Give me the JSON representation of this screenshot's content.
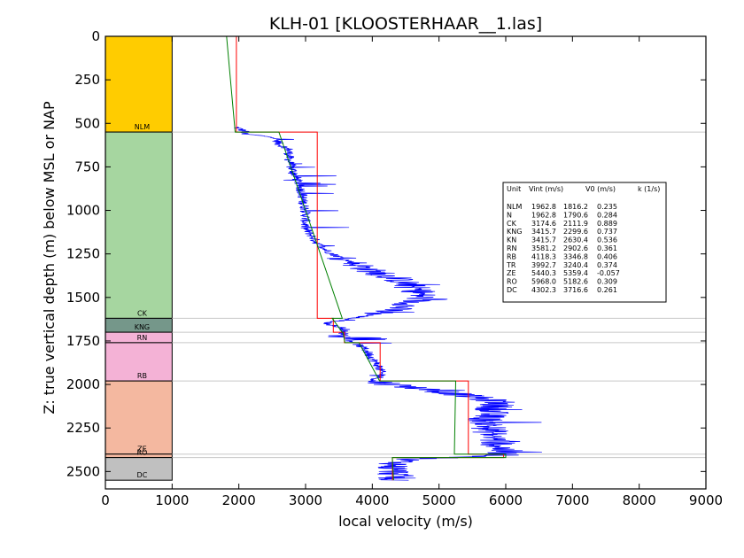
{
  "chart_data": {
    "type": "line",
    "title": "KLH-01 [KLOOSTERHAAR__1.las]",
    "xlabel": "local velocity (m/s)",
    "ylabel": "Z: true vertical depth (m) below MSL or NAP",
    "xlim": [
      0,
      9000
    ],
    "ylim": [
      2600,
      0
    ],
    "x_ticks": [
      "0",
      "1000",
      "2000",
      "3000",
      "4000",
      "5000",
      "6000",
      "7000",
      "8000",
      "9000"
    ],
    "y_ticks": [
      "0",
      "250",
      "500",
      "750",
      "1000",
      "1250",
      "1500",
      "1750",
      "2000",
      "2250",
      "2500"
    ],
    "grid": false,
    "colors": {
      "log": "#0000ff",
      "interval_velocity": "#ff0000",
      "model_velocity": "#008000",
      "boundary": "#c8c8c8"
    },
    "units": [
      {
        "code": "NLM",
        "top": 0,
        "base": 550,
        "color": "#ffcc00"
      },
      {
        "code": "CK",
        "top": 550,
        "base": 1620,
        "color": "#a6d6a0"
      },
      {
        "code": "KNG",
        "top": 1620,
        "base": 1700,
        "color": "#75978a"
      },
      {
        "code": "RN",
        "top": 1700,
        "base": 1760,
        "color": "#f4b2d6"
      },
      {
        "code": "RB",
        "top": 1760,
        "base": 1980,
        "color": "#f4b2d6"
      },
      {
        "code": "ZE",
        "top": 1980,
        "base": 2400,
        "color": "#f4b8a0"
      },
      {
        "code": "RO",
        "top": 2400,
        "base": 2420,
        "color": "#f4b8a0"
      },
      {
        "code": "DC",
        "top": 2420,
        "base": 2550,
        "color": "#c0c0c0"
      }
    ],
    "boundaries": [
      550,
      1620,
      1700,
      1760,
      1980,
      2400,
      2420
    ],
    "interval_velocity": [
      {
        "v": 1962.8,
        "top": 0,
        "base": 550
      },
      {
        "v": 3174.6,
        "top": 550,
        "base": 1620
      },
      {
        "v": 3415.7,
        "top": 1620,
        "base": 1700
      },
      {
        "v": 3581.2,
        "top": 1700,
        "base": 1760
      },
      {
        "v": 4118.3,
        "top": 1760,
        "base": 1980
      },
      {
        "v": 5440.3,
        "top": 1980,
        "base": 2400
      },
      {
        "v": 5968.0,
        "top": 2400,
        "base": 2420
      },
      {
        "v": 4302.3,
        "top": 2420,
        "base": 2550
      }
    ],
    "model_velocity": [
      {
        "z": 0,
        "v": 1816
      },
      {
        "z": 550,
        "v": 1945
      },
      {
        "z": 550,
        "v": 2600
      },
      {
        "z": 1620,
        "v": 3550
      },
      {
        "z": 1620,
        "v": 3400
      },
      {
        "z": 1700,
        "v": 3550
      },
      {
        "z": 1700,
        "v": 3560
      },
      {
        "z": 1760,
        "v": 3590
      },
      {
        "z": 1760,
        "v": 3800
      },
      {
        "z": 1980,
        "v": 4110
      },
      {
        "z": 1980,
        "v": 5250
      },
      {
        "z": 2400,
        "v": 5230
      },
      {
        "z": 2400,
        "v": 6000
      },
      {
        "z": 2420,
        "v": 6000
      },
      {
        "z": 2420,
        "v": 4300
      },
      {
        "z": 2550,
        "v": 4320
      }
    ],
    "log_profile": [
      {
        "z": 520,
        "v": 1950
      },
      {
        "z": 548,
        "v": 2100
      },
      {
        "z": 560,
        "v": 2050
      },
      {
        "z": 580,
        "v": 2550
      },
      {
        "z": 620,
        "v": 2600
      },
      {
        "z": 650,
        "v": 2750
      },
      {
        "z": 700,
        "v": 2750
      },
      {
        "z": 750,
        "v": 2780
      },
      {
        "z": 800,
        "v": 2850
      },
      {
        "z": 850,
        "v": 2900
      },
      {
        "z": 900,
        "v": 2950
      },
      {
        "z": 950,
        "v": 2960
      },
      {
        "z": 1000,
        "v": 3000
      },
      {
        "z": 1050,
        "v": 3000
      },
      {
        "z": 1100,
        "v": 2990
      },
      {
        "z": 1150,
        "v": 3100
      },
      {
        "z": 1200,
        "v": 3200
      },
      {
        "z": 1250,
        "v": 3400
      },
      {
        "z": 1300,
        "v": 3700
      },
      {
        "z": 1350,
        "v": 4000
      },
      {
        "z": 1400,
        "v": 4400
      },
      {
        "z": 1450,
        "v": 4650
      },
      {
        "z": 1500,
        "v": 4750
      },
      {
        "z": 1550,
        "v": 4500
      },
      {
        "z": 1600,
        "v": 4000
      },
      {
        "z": 1620,
        "v": 3700
      },
      {
        "z": 1650,
        "v": 3300
      },
      {
        "z": 1680,
        "v": 3600
      },
      {
        "z": 1700,
        "v": 3550
      },
      {
        "z": 1750,
        "v": 3700
      },
      {
        "z": 1800,
        "v": 3900
      },
      {
        "z": 1850,
        "v": 4000
      },
      {
        "z": 1900,
        "v": 4100
      },
      {
        "z": 1950,
        "v": 4150
      },
      {
        "z": 1980,
        "v": 4000
      },
      {
        "z": 2000,
        "v": 4300
      },
      {
        "z": 2050,
        "v": 5200
      },
      {
        "z": 2100,
        "v": 5900
      },
      {
        "z": 2150,
        "v": 5800
      },
      {
        "z": 2200,
        "v": 5700
      },
      {
        "z": 2250,
        "v": 5750
      },
      {
        "z": 2300,
        "v": 5800
      },
      {
        "z": 2350,
        "v": 5900
      },
      {
        "z": 2390,
        "v": 6000
      },
      {
        "z": 2410,
        "v": 5900
      },
      {
        "z": 2430,
        "v": 4500
      },
      {
        "z": 2470,
        "v": 4300
      },
      {
        "z": 2520,
        "v": 4350
      },
      {
        "z": 2550,
        "v": 4300
      }
    ],
    "table": {
      "headers": [
        "Unit",
        "Vint (m/s)",
        "V0 (m/s)",
        "k (1/s)"
      ],
      "rows": [
        [
          "NLM",
          "1962.8",
          "1816.2",
          "0.235"
        ],
        [
          "N",
          "1962.8",
          "1790.6",
          "0.284"
        ],
        [
          "CK",
          "3174.6",
          "2111.9",
          "0.889"
        ],
        [
          "KNG",
          "3415.7",
          "2299.6",
          "0.737"
        ],
        [
          "KN",
          "3415.7",
          "2630.4",
          "0.536"
        ],
        [
          "RN",
          "3581.2",
          "2902.6",
          "0.361"
        ],
        [
          "RB",
          "4118.3",
          "3346.8",
          "0.406"
        ],
        [
          "TR",
          "3992.7",
          "3240.4",
          "0.374"
        ],
        [
          "ZE",
          "5440.3",
          "5359.4",
          "-0.057"
        ],
        [
          "RO",
          "5968.0",
          "5182.6",
          "0.309"
        ],
        [
          "DC",
          "4302.3",
          "3716.6",
          "0.261"
        ]
      ]
    }
  }
}
